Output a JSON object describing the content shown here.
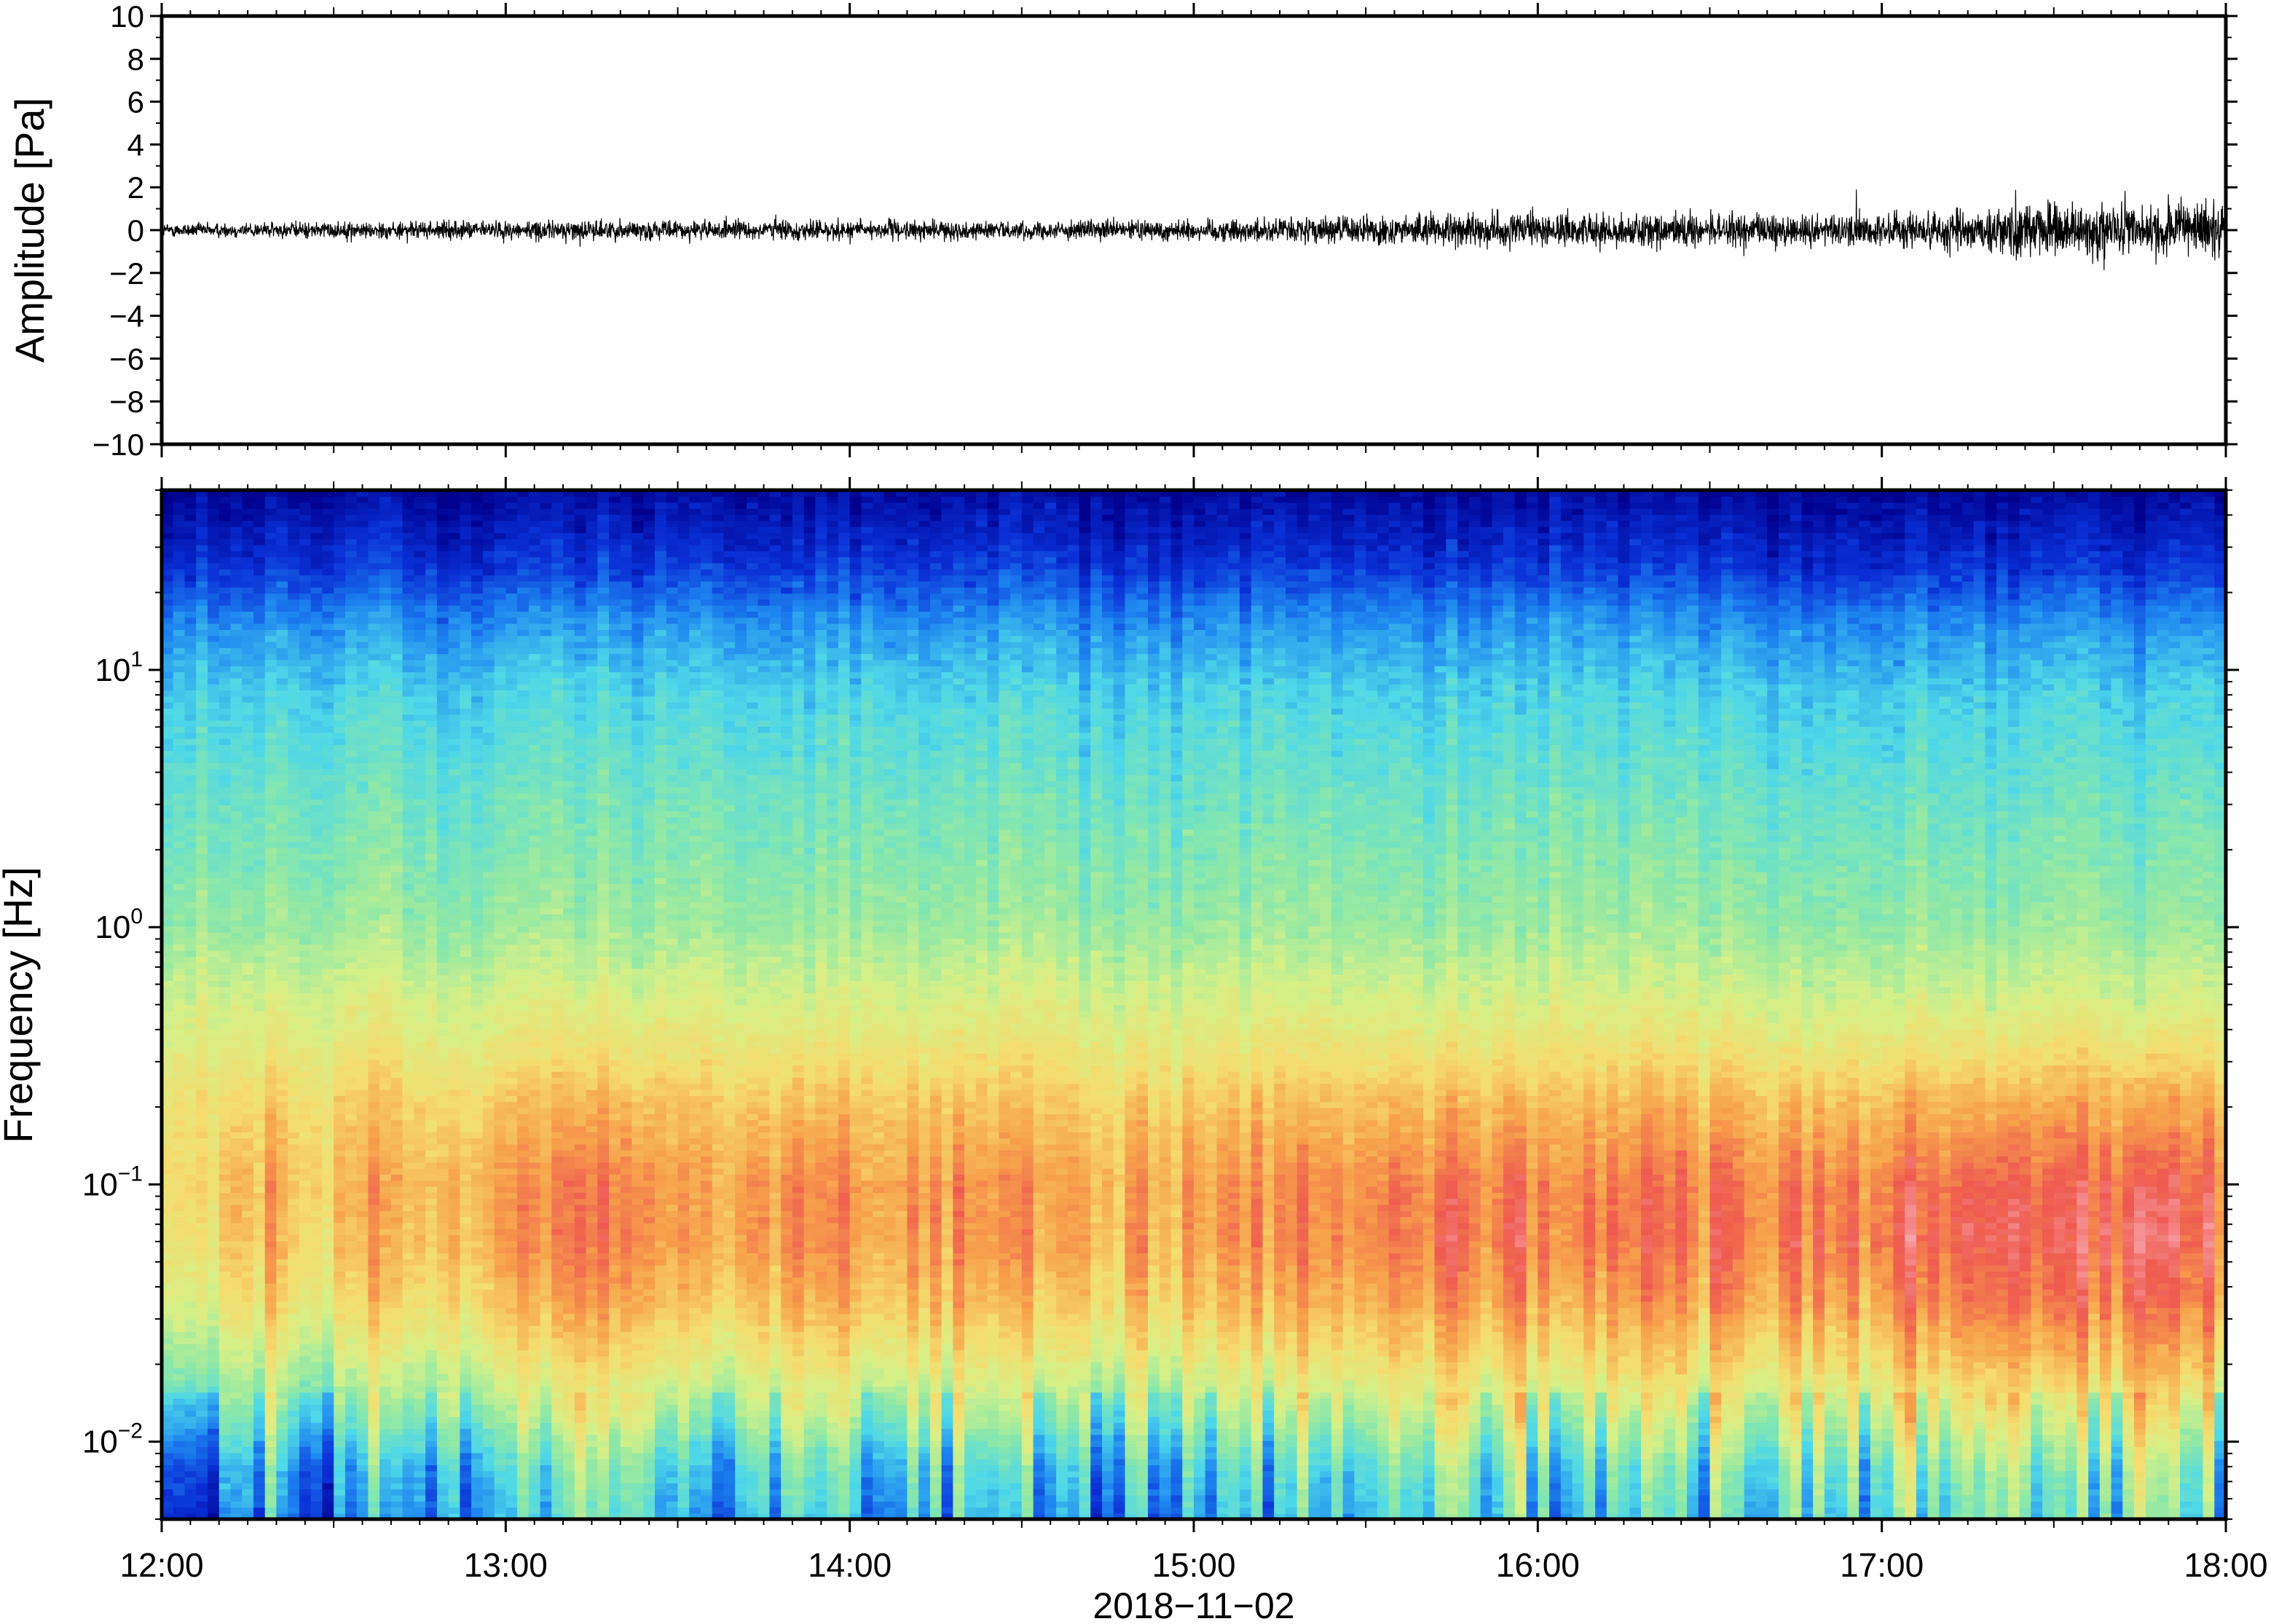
{
  "chart_data": [
    {
      "type": "line",
      "panel": "waveform",
      "xlabel": "",
      "ylabel": "Amplitude [Pa]",
      "xlim": [
        "12:00",
        "18:00"
      ],
      "ylim": [
        -10,
        10
      ],
      "yticks": [
        10,
        8,
        6,
        4,
        2,
        0,
        -2,
        -4,
        -6,
        -8,
        -10
      ],
      "yticklabels": [
        "10",
        "8",
        "6",
        "4",
        "2",
        "0",
        "−2",
        "−4",
        "−6",
        "−8",
        "−10"
      ],
      "line_color": "#000000",
      "envelope": {
        "description": "noise envelope (Pa) sampled every 15 minutes",
        "time": [
          "12:00",
          "12:15",
          "12:30",
          "12:45",
          "13:00",
          "13:15",
          "13:30",
          "13:45",
          "14:00",
          "14:15",
          "14:30",
          "14:45",
          "15:00",
          "15:15",
          "15:30",
          "15:45",
          "16:00",
          "16:15",
          "16:30",
          "16:45",
          "17:00",
          "17:15",
          "17:30",
          "17:45",
          "18:00"
        ],
        "amplitude": [
          0.4,
          0.45,
          0.5,
          0.5,
          0.55,
          0.6,
          0.55,
          0.6,
          0.6,
          0.55,
          0.5,
          0.55,
          0.65,
          0.7,
          0.85,
          0.95,
          1.0,
          1.0,
          0.95,
          0.95,
          1.0,
          1.4,
          1.6,
          1.6,
          1.5
        ]
      }
    },
    {
      "type": "heatmap",
      "panel": "spectrogram",
      "title": "",
      "xlabel": "2018−11−02",
      "ylabel": "Frequency [Hz]",
      "xlim": [
        "12:00",
        "18:00"
      ],
      "xticks": [
        "12:00",
        "13:00",
        "14:00",
        "15:00",
        "16:00",
        "17:00",
        "18:00"
      ],
      "yscale": "log",
      "ylim": [
        0.005,
        50
      ],
      "yticks": [
        0.01,
        0.1,
        1,
        10
      ],
      "yticklabels": [
        {
          "base": "10",
          "exp": "−2"
        },
        {
          "base": "10",
          "exp": "−1"
        },
        {
          "base": "10",
          "exp": "0"
        },
        {
          "base": "10",
          "exp": "1"
        }
      ],
      "colormap": [
        "#00008c",
        "#0a2fd6",
        "#1e88f0",
        "#4ed8e8",
        "#8ce8a8",
        "#d6f088",
        "#f5dc6e",
        "#f7a24c",
        "#ef5a50",
        "#f8a8b0"
      ],
      "low_frequency_trend": {
        "description": "relative low-frequency (≈0.03–0.1 Hz) power, 0–1, sampled every 15 minutes",
        "time": [
          "12:00",
          "12:15",
          "12:30",
          "12:45",
          "13:00",
          "13:15",
          "13:30",
          "13:45",
          "14:00",
          "14:15",
          "14:30",
          "14:45",
          "15:00",
          "15:15",
          "15:30",
          "15:45",
          "16:00",
          "16:15",
          "16:30",
          "16:45",
          "17:00",
          "17:15",
          "17:30",
          "17:45",
          "18:00"
        ],
        "power": [
          0.55,
          0.6,
          0.62,
          0.62,
          0.7,
          0.72,
          0.7,
          0.72,
          0.72,
          0.7,
          0.7,
          0.7,
          0.72,
          0.75,
          0.78,
          0.8,
          0.8,
          0.82,
          0.82,
          0.82,
          0.84,
          0.9,
          0.94,
          0.94,
          0.9
        ]
      }
    }
  ]
}
